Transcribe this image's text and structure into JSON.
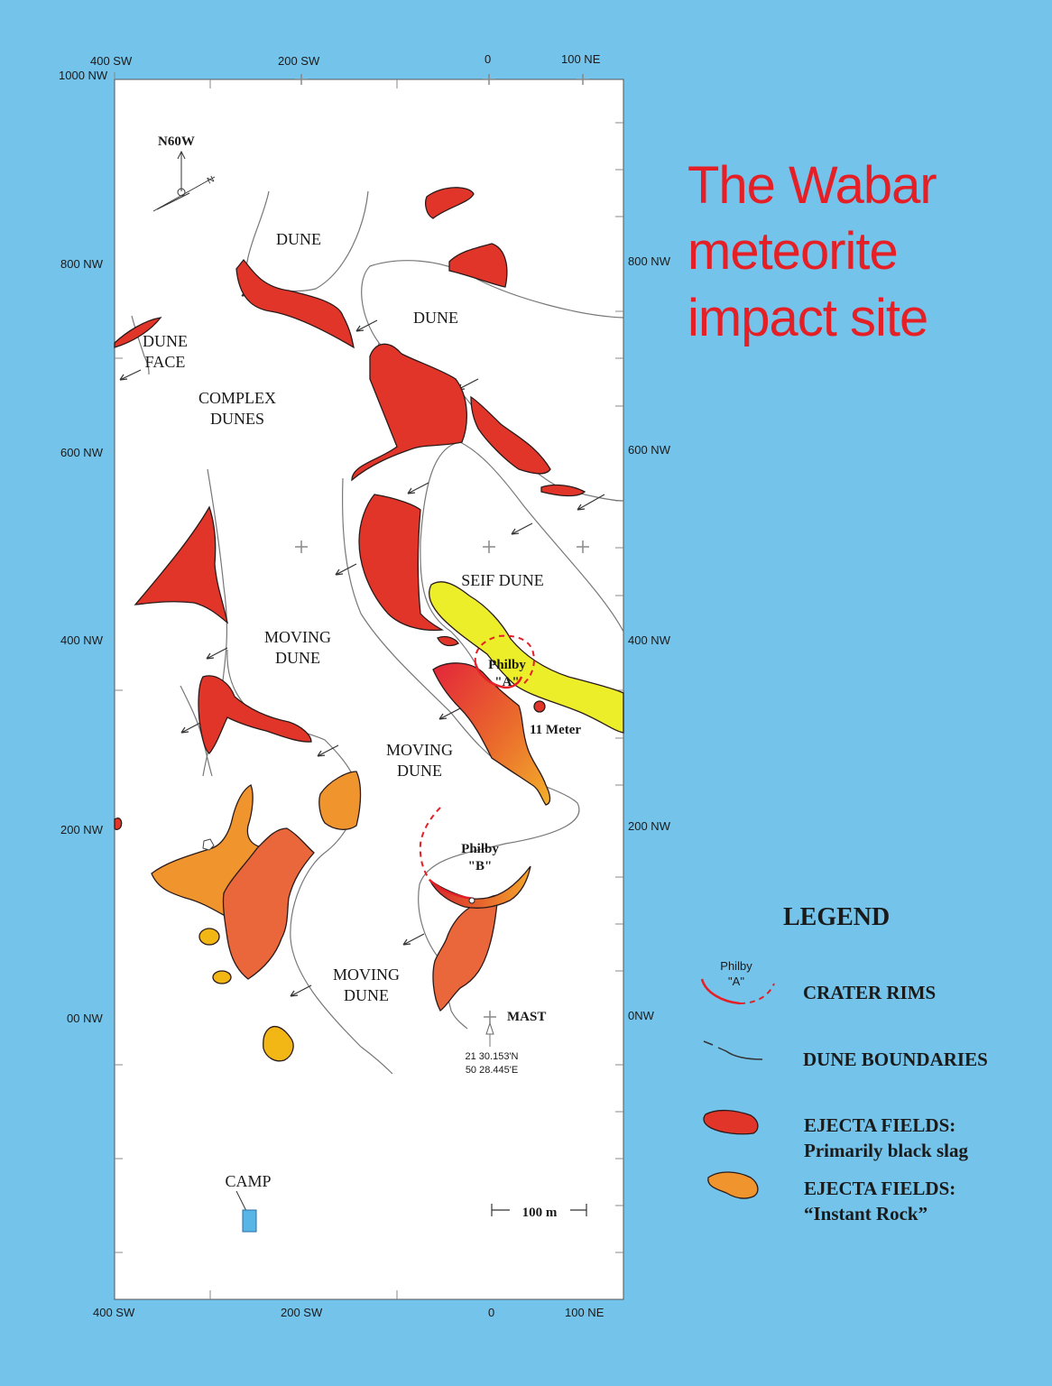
{
  "title": {
    "line1": "The Wabar",
    "line2": "meteorite",
    "line3": "impact site"
  },
  "axes": {
    "top_left_corner": "1000 NW",
    "top_ticks": [
      "400 SW",
      "200 SW",
      "0",
      "100 NE"
    ],
    "bottom_ticks": [
      "400 SW",
      "200 SW",
      "0",
      "100 NE"
    ],
    "left_ticks": [
      "800 NW",
      "600 NW",
      "400 NW",
      "200 NW",
      "00 NW"
    ],
    "right_ticks": [
      "800 NW",
      "600 NW",
      "400 NW",
      "200 NW",
      "0NW"
    ]
  },
  "compass": {
    "label": "N60W",
    "n_label": "N"
  },
  "map_labels": {
    "dune_1": "DUNE",
    "dune_2": "DUNE",
    "dune_face_1": "DUNE",
    "dune_face_2": "FACE",
    "complex_1": "COMPLEX",
    "complex_2": "DUNES",
    "seif": "SEIF DUNE",
    "moving_a_1": "MOVING",
    "moving_a_2": "DUNE",
    "moving_b_1": "MOVING",
    "moving_b_2": "DUNE",
    "moving_c_1": "MOVING",
    "moving_c_2": "DUNE",
    "philby_a_1": "Philby",
    "philby_a_2": "\"A\"",
    "philby_b_1": "Philby",
    "philby_b_2": "\"B\"",
    "eleven_meter": "11 Meter",
    "mast": "MAST",
    "coord_lat": "21 30.153'N",
    "coord_lon": "50 28.445'E",
    "camp": "CAMP",
    "scale": "100 m"
  },
  "legend": {
    "title": "LEGEND",
    "philby_1": "Philby",
    "philby_2": "\"A\"",
    "crater_rims": "CRATER RIMS",
    "dune_boundaries": "DUNE BOUNDARIES",
    "slag_1": "EJECTA FIELDS:",
    "slag_2": "Primarily black slag",
    "rock_1": "EJECTA FIELDS:",
    "rock_2": "“Instant Rock”"
  },
  "colors": {
    "background": "#74c3ea",
    "title": "#e41f26",
    "slag": "#e2352a",
    "instant_rock": "#e9673a",
    "seif_dune": "#edee2a",
    "camp": "#58b6e6"
  }
}
